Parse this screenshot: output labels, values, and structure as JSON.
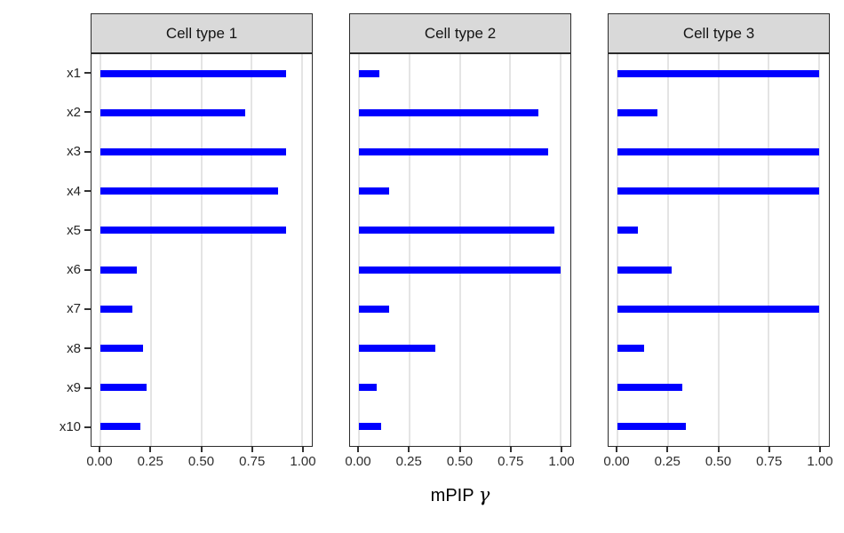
{
  "figure": {
    "x_title": {
      "text": "mPIP",
      "symbol": "γ"
    }
  },
  "chart_data": {
    "type": "bar",
    "orientation": "horizontal",
    "title": "",
    "xlabel": "mPIP γ",
    "ylabel": "",
    "xlim": [
      0,
      1
    ],
    "grid": "major-x",
    "legend": "none",
    "x_tick_values": [
      0,
      0.25,
      0.5,
      0.75,
      1
    ],
    "x_tick_labels": [
      "0.00",
      "0.25",
      "0.50",
      "0.75",
      "1.00"
    ],
    "categories": [
      "x1",
      "x2",
      "x3",
      "x4",
      "x5",
      "x6",
      "x7",
      "x8",
      "x9",
      "x10"
    ],
    "facets": [
      "Cell type 1",
      "Cell type 2",
      "Cell type 3"
    ],
    "series": [
      {
        "name": "Cell type 1",
        "values": [
          0.92,
          0.72,
          0.92,
          0.88,
          0.92,
          0.18,
          0.16,
          0.21,
          0.23,
          0.2
        ]
      },
      {
        "name": "Cell type 2",
        "values": [
          0.1,
          0.89,
          0.94,
          0.15,
          0.97,
          1.0,
          0.15,
          0.38,
          0.09,
          0.11
        ]
      },
      {
        "name": "Cell type 3",
        "values": [
          1.0,
          0.2,
          1.0,
          1.0,
          0.1,
          0.27,
          1.0,
          0.13,
          0.32,
          0.34
        ]
      }
    ],
    "bar_color": "#0000FF",
    "strip_fill": "#D9D9D9",
    "panel_border": "#2B2B2B",
    "gridline_color": "#E4E4E4",
    "axis_text_color": "#2E2E2E"
  }
}
